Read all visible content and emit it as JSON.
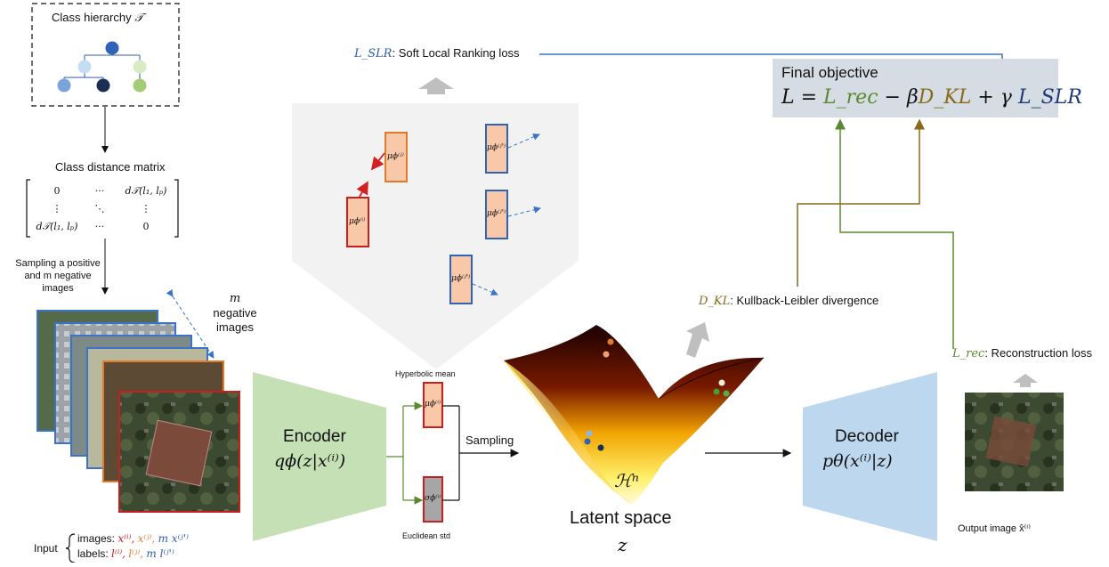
{
  "hierarchy": {
    "title": "Class hierarchy",
    "symbol": "𝒯"
  },
  "distance_matrix": {
    "title": "Class distance matrix",
    "cells": [
      "0",
      "···",
      "d𝒯(l₁, lₚ)",
      "⋮",
      "⋱",
      "⋮",
      "d𝒯(l₁, lₚ)",
      "···",
      "0"
    ]
  },
  "sampling_note": [
    "Sampling a positive",
    "and m negative",
    "images"
  ],
  "negatives_label": [
    "m",
    "negative",
    "images"
  ],
  "input": {
    "prefix": "Input",
    "images_label": "images:",
    "labels_label": "labels:",
    "images": [
      "x⁽ⁱ⁾,",
      "x⁽ʲ⁾,",
      "m x⁽ʲ'⁾"
    ],
    "labels": [
      "l⁽ⁱ⁾,",
      "l⁽ʲ⁾,",
      "m l⁽ʲ'⁾"
    ]
  },
  "encoder": {
    "title": "Encoder",
    "formula": "qϕ(z|x⁽ⁱ⁾)"
  },
  "decoder": {
    "title": "Decoder",
    "formula": "pθ(x⁽ⁱ⁾|z)"
  },
  "posterior": {
    "mean_label": "Hyperbolic mean",
    "std_label": "Euclidean std",
    "mean_symbol": "μϕ⁽ⁱ⁾",
    "std_symbol": "σϕ⁽ⁱ⁾",
    "sampling": "Sampling"
  },
  "latent": {
    "title": "Latent space",
    "var": "z",
    "manifold": "ℋⁿ"
  },
  "losses": {
    "slr_sym": "L_SLR",
    "slr_text": ": Soft Local Ranking  loss",
    "kl_sym": "D_KL",
    "kl_text": ": Kullback-Leibler divergence",
    "rec_sym": "L_rec",
    "rec_text": ": Reconstruction loss"
  },
  "objective": {
    "title": "Final objective",
    "lhs": "L =",
    "rec": "L_rec",
    "minus": "−",
    "beta": "β",
    "kl": "D_KL",
    "plus": "+",
    "gamma": "γ",
    "slr": "L_SLR"
  },
  "embedding_boxes": {
    "anchor": "μϕ⁽ⁱ⁾",
    "positive": "μϕ⁽ʲ⁾",
    "negative": "μϕ⁽ʲ'⁾"
  },
  "output_label": "Output image x̂⁽ⁱ⁾",
  "colors": {
    "green": "#5a8a2e",
    "blue": "#2e5ea8",
    "olive": "#8a6a1a",
    "red": "#c81e1e",
    "orange": "#e07b2e",
    "navy": "#1f3a7a"
  }
}
